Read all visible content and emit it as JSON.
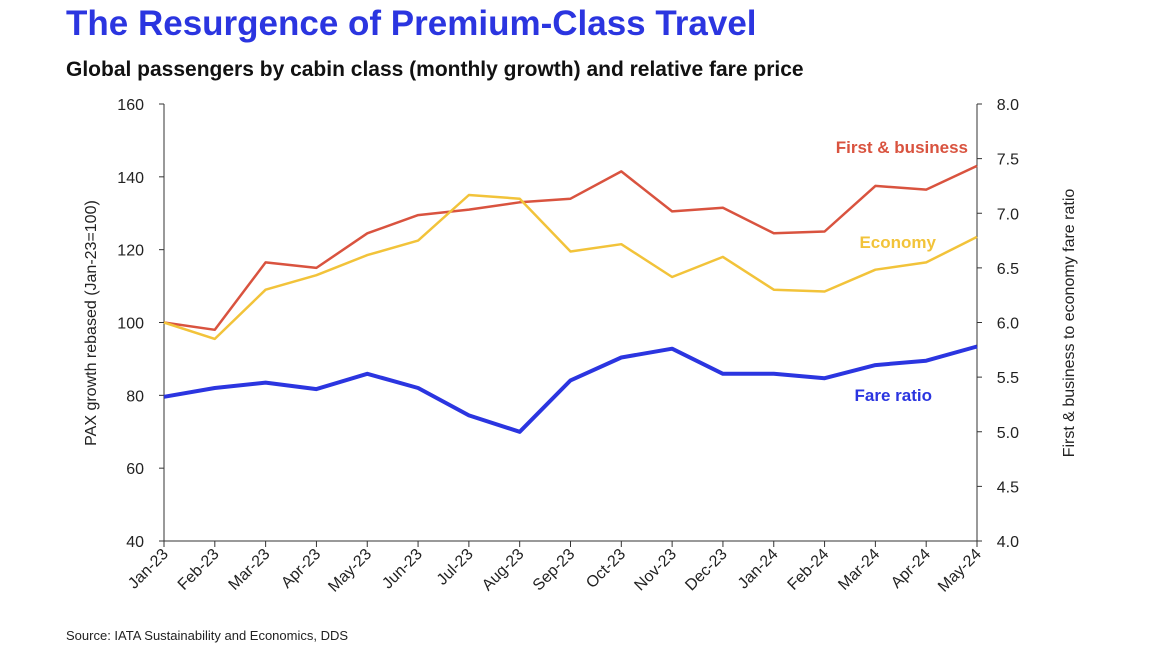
{
  "title": "The Resurgence of Premium-Class Travel",
  "subtitle": "Global passengers by cabin class (monthly growth) and relative fare price",
  "source": "Source: IATA Sustainability and Economics, DDS",
  "colors": {
    "title": "#2b35e0",
    "first_business": "#d9533f",
    "economy": "#f2c33a",
    "fare_ratio": "#2b35e0",
    "axis": "#333333"
  },
  "chart_data": {
    "type": "line",
    "categories": [
      "Jan-23",
      "Feb-23",
      "Mar-23",
      "Apr-23",
      "May-23",
      "Jun-23",
      "Jul-23",
      "Aug-23",
      "Sep-23",
      "Oct-23",
      "Nov-23",
      "Dec-23",
      "Jan-24",
      "Feb-24",
      "Mar-24",
      "Apr-24",
      "May-24"
    ],
    "ylabel_left": "PAX growth rebased (Jan-23=100)",
    "ylabel_right": "First & business to economy fare ratio",
    "ylim_left": [
      40,
      160
    ],
    "ylim_right": [
      4.0,
      8.0
    ],
    "yticks_left": [
      "40",
      "60",
      "80",
      "100",
      "120",
      "140",
      "160"
    ],
    "yticks_right": [
      "4.0",
      "4.5",
      "5.0",
      "5.5",
      "6.0",
      "6.5",
      "7.0",
      "7.5",
      "8.0"
    ],
    "grid": false,
    "series": [
      {
        "name": "First & business",
        "axis": "left",
        "color_key": "first_business",
        "values": [
          100,
          98,
          116.5,
          115,
          124.5,
          129.5,
          131,
          133,
          134,
          141.5,
          130.5,
          131.5,
          124.5,
          125,
          137.5,
          136.5,
          143
        ]
      },
      {
        "name": "Economy",
        "axis": "left",
        "color_key": "economy",
        "values": [
          100,
          95.5,
          109,
          113,
          118.5,
          122.5,
          135,
          134,
          119.5,
          121.5,
          112.5,
          118,
          109,
          108.5,
          114.5,
          116.5,
          123.5
        ]
      },
      {
        "name": "Fare ratio",
        "axis": "right",
        "color_key": "fare_ratio",
        "values": [
          5.32,
          5.4,
          5.45,
          5.39,
          5.53,
          5.4,
          5.15,
          5.0,
          5.47,
          5.68,
          5.76,
          5.53,
          5.53,
          5.49,
          5.61,
          5.65,
          5.78
        ]
      }
    ]
  }
}
